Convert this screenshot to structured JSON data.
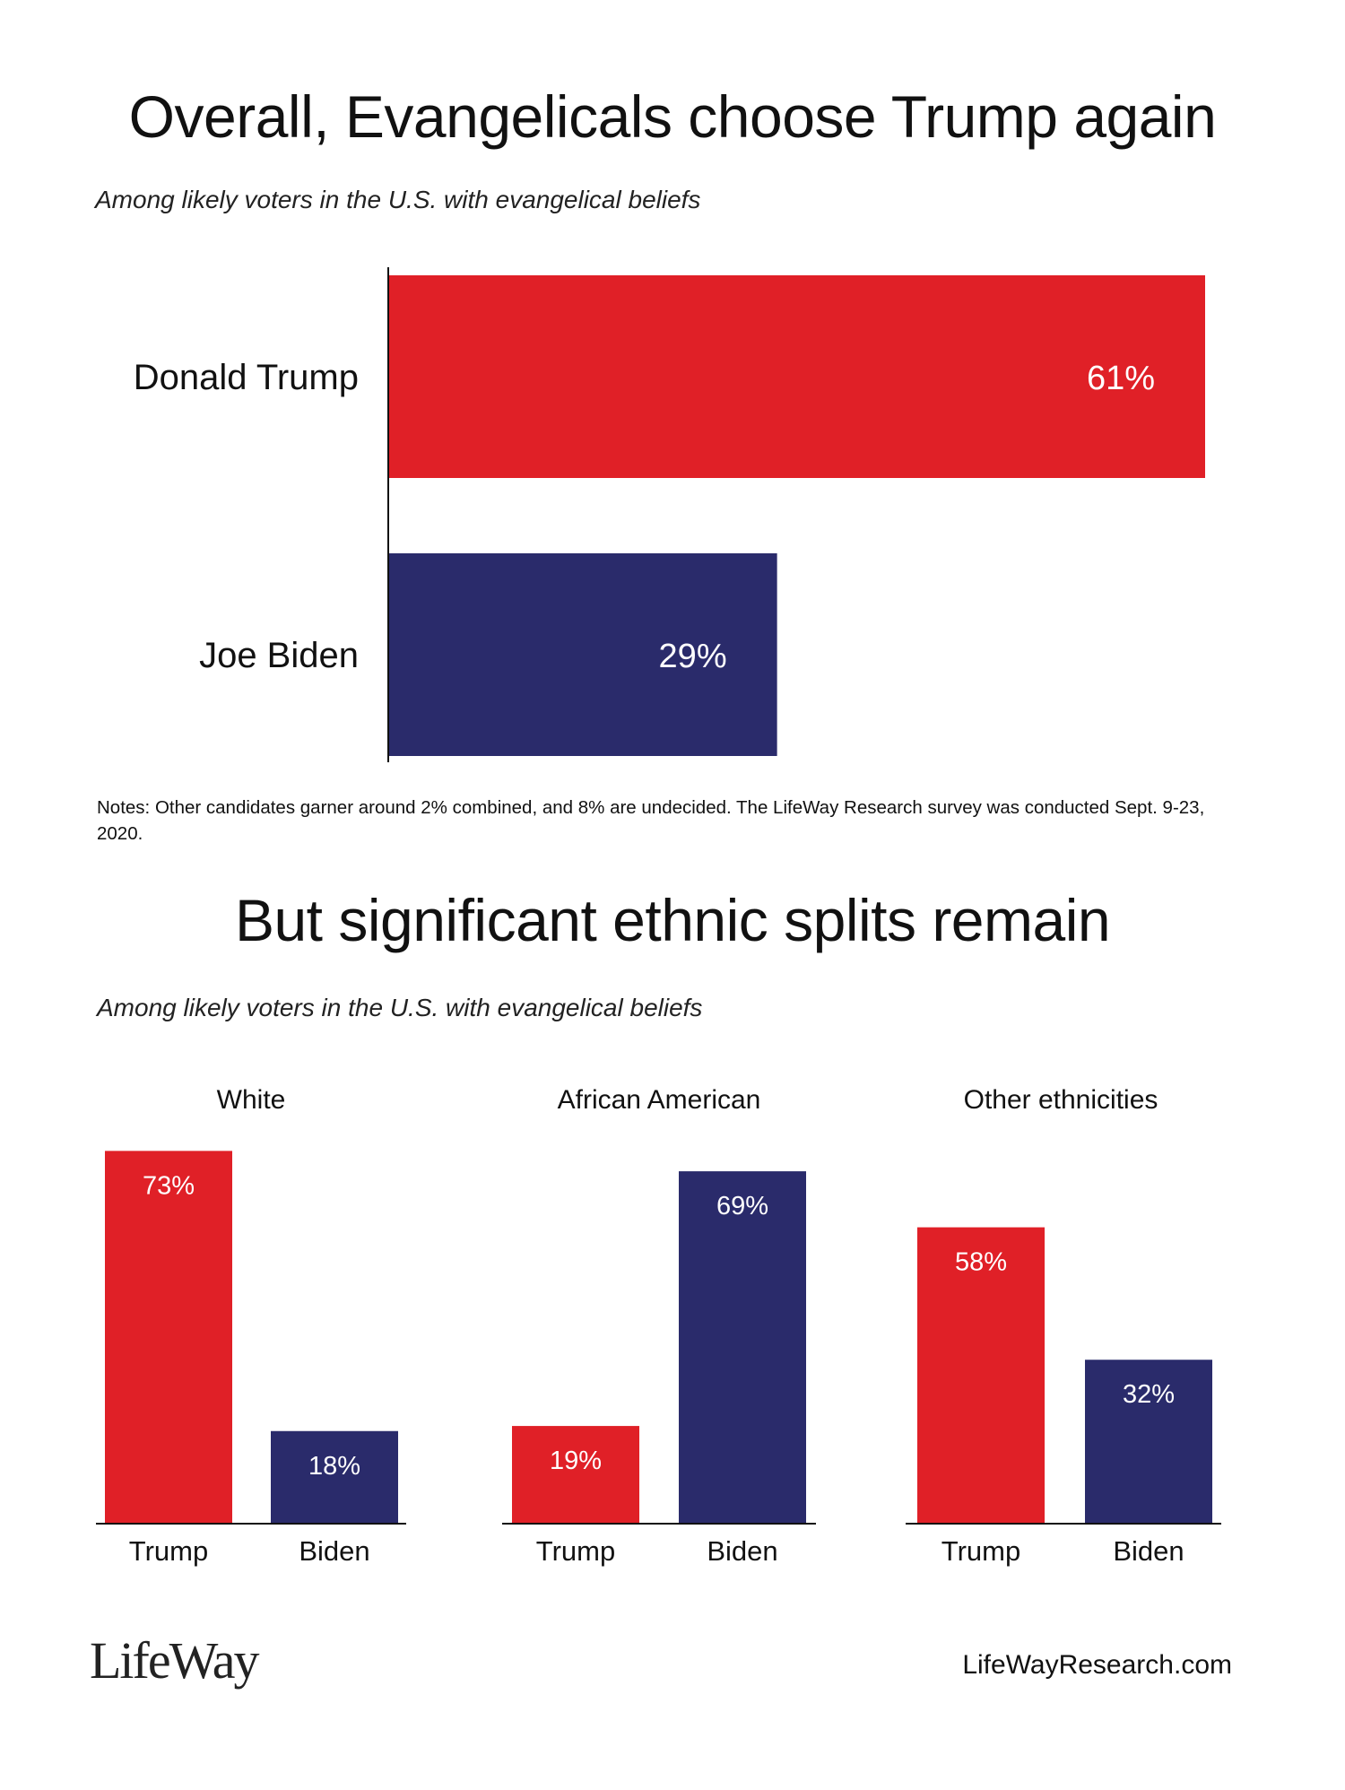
{
  "colors": {
    "trump": "#e02027",
    "biden": "#2a2b6b",
    "axis": "#111111",
    "bar_label": "#ffffff"
  },
  "chart1": {
    "title": "Overall, Evangelicals choose Trump again",
    "subtitle": "Among likely voters in the U.S. with evangelical beliefs",
    "notes": "Notes: Other candidates garner around 2% combined, and 8% are undecided. The LifeWay Research survey was conducted Sept. 9-23, 2020."
  },
  "chart2": {
    "title": "But significant ethnic splits remain",
    "subtitle": "Among likely voters in the U.S. with evangelical beliefs"
  },
  "footer": {
    "logo": "LifeWay",
    "url": "LifeWayResearch.com"
  },
  "chart_data": [
    {
      "type": "bar",
      "orientation": "horizontal",
      "title": "Overall, Evangelicals choose Trump again",
      "subtitle": "Among likely voters in the U.S. with evangelical beliefs",
      "categories": [
        "Donald Trump",
        "Joe Biden"
      ],
      "values": [
        61,
        29
      ],
      "labels": [
        "61%",
        "29%"
      ],
      "colors": [
        "#e02027",
        "#2a2b6b"
      ],
      "unit": "%",
      "grid": false
    },
    {
      "type": "bar",
      "title": "But significant ethnic splits remain",
      "subtitle": "Among likely voters in the U.S. with evangelical beliefs",
      "panels": [
        {
          "group": "White",
          "categories": [
            "Trump",
            "Biden"
          ],
          "values": [
            73,
            18
          ],
          "labels": [
            "73%",
            "18%"
          ]
        },
        {
          "group": "African American",
          "categories": [
            "Trump",
            "Biden"
          ],
          "values": [
            19,
            69
          ],
          "labels": [
            "19%",
            "69%"
          ]
        },
        {
          "group": "Other ethnicities",
          "categories": [
            "Trump",
            "Biden"
          ],
          "values": [
            58,
            32
          ],
          "labels": [
            "58%",
            "32%"
          ]
        }
      ],
      "colors": [
        "#e02027",
        "#2a2b6b"
      ],
      "unit": "%",
      "grid": false
    }
  ]
}
